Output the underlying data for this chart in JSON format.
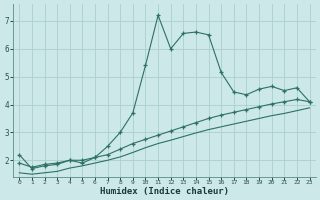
{
  "xlabel": "Humidex (Indice chaleur)",
  "background_color": "#cce8e8",
  "grid_color": "#aacfcf",
  "line_color": "#2d7067",
  "xlim": [
    -0.5,
    23.5
  ],
  "ylim": [
    1.4,
    7.6
  ],
  "xticks": [
    0,
    1,
    2,
    3,
    4,
    5,
    6,
    7,
    8,
    9,
    10,
    11,
    12,
    13,
    14,
    15,
    16,
    17,
    18,
    19,
    20,
    21,
    22,
    23
  ],
  "yticks": [
    2,
    3,
    4,
    5,
    6,
    7
  ],
  "series1_x": [
    0,
    1,
    2,
    3,
    4,
    5,
    6,
    7,
    8,
    9,
    10,
    11,
    12,
    13,
    14,
    15,
    16,
    17,
    18,
    19,
    20,
    21,
    22,
    23
  ],
  "series1_y": [
    2.2,
    1.7,
    1.8,
    1.85,
    2.0,
    1.9,
    2.1,
    2.5,
    3.0,
    3.7,
    5.4,
    7.2,
    6.0,
    6.55,
    6.6,
    6.5,
    5.15,
    4.45,
    4.35,
    4.55,
    4.65,
    4.5,
    4.6,
    4.1
  ],
  "series2_x": [
    0,
    1,
    2,
    3,
    4,
    5,
    6,
    7,
    8,
    9,
    10,
    11,
    12,
    13,
    14,
    15,
    16,
    17,
    18,
    19,
    20,
    21,
    22,
    23
  ],
  "series2_y": [
    1.9,
    1.75,
    1.85,
    1.9,
    2.0,
    2.0,
    2.1,
    2.2,
    2.4,
    2.6,
    2.75,
    2.9,
    3.05,
    3.2,
    3.35,
    3.5,
    3.62,
    3.72,
    3.82,
    3.92,
    4.02,
    4.1,
    4.18,
    4.1
  ],
  "series3_x": [
    0,
    1,
    2,
    3,
    4,
    5,
    6,
    7,
    8,
    9,
    10,
    11,
    12,
    13,
    14,
    15,
    16,
    17,
    18,
    19,
    20,
    21,
    22,
    23
  ],
  "series3_y": [
    1.55,
    1.5,
    1.55,
    1.6,
    1.72,
    1.8,
    1.9,
    2.0,
    2.12,
    2.28,
    2.45,
    2.6,
    2.72,
    2.85,
    2.98,
    3.1,
    3.2,
    3.3,
    3.4,
    3.5,
    3.6,
    3.68,
    3.78,
    3.88
  ]
}
